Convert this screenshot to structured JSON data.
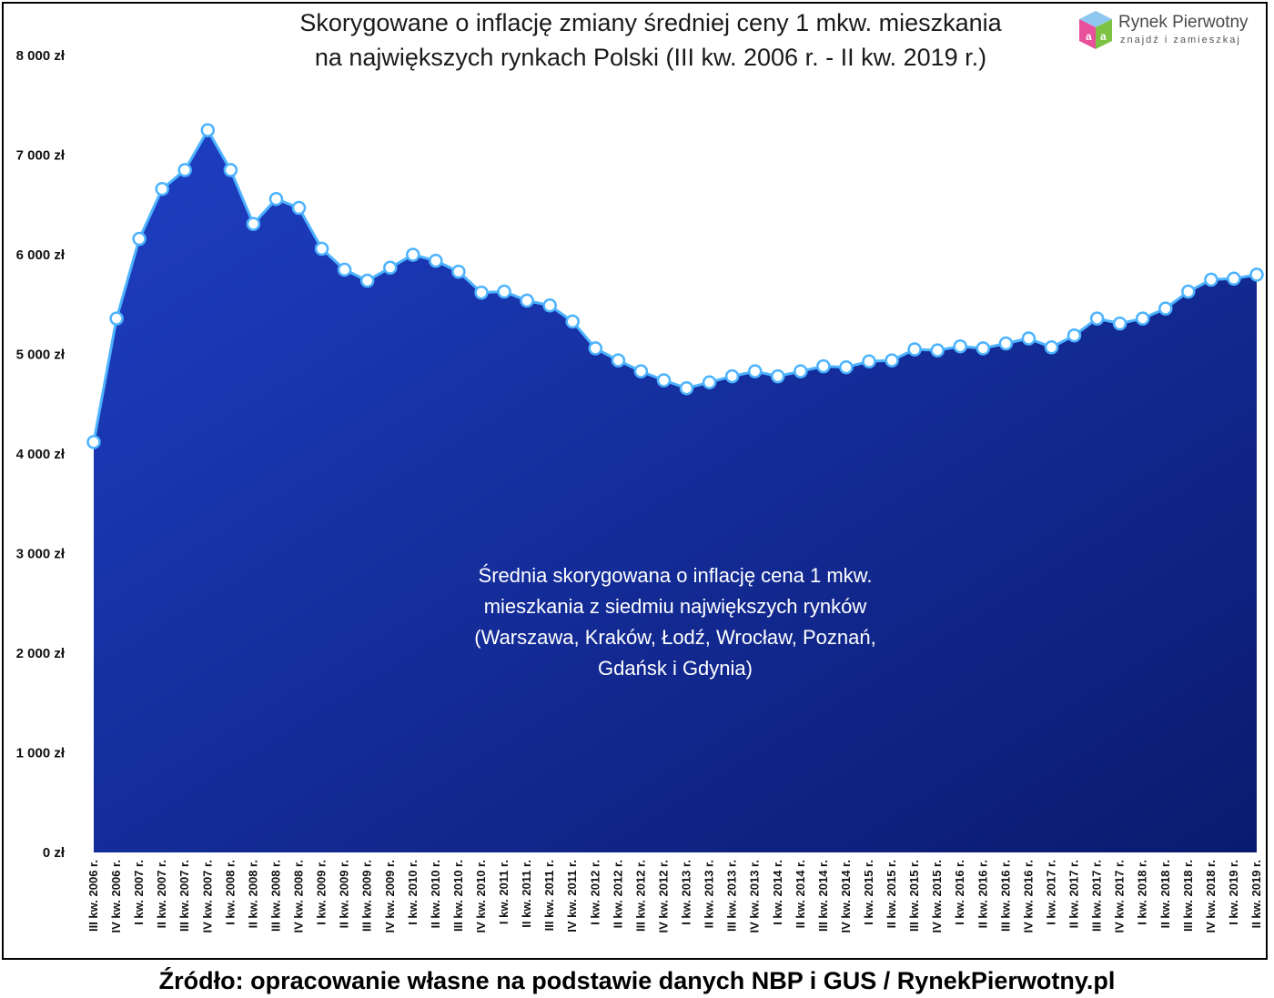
{
  "title": {
    "line1": "Skorygowane o inflację zmiany średniej ceny 1 mkw. mieszkania",
    "line2": "na największych rynkach Polski (III kw. 2006 r. - II kw. 2019 r.)"
  },
  "logo": {
    "name": "Rynek Pierwotny",
    "tagline": "znajdź i zamieszkaj",
    "icon": "cube-logo-icon"
  },
  "source": "Źródło: opracowanie własne na podstawie danych NBP i GUS / RynekPierwotny.pl",
  "colors": {
    "area_top": "#1e3fc4",
    "area_bottom": "#0a1a6e",
    "line": "#4db3ff",
    "marker_fill": "#ffffff"
  },
  "chart_data": {
    "type": "area",
    "ylim": [
      0,
      8000
    ],
    "yticks": [
      "0 zł",
      "1 000 zł",
      "2 000 zł",
      "3 000 zł",
      "4 000 zł",
      "5 000 zł",
      "6 000 zł",
      "7 000 zł",
      "8 000 zł"
    ],
    "ytick_values": [
      0,
      1000,
      2000,
      3000,
      4000,
      5000,
      6000,
      7000,
      8000
    ],
    "grid": false,
    "annotation": [
      "Średnia skorygowana o inflację cena 1 mkw.",
      "mieszkania z siedmiu największych rynków",
      "(Warszawa, Kraków, Łodź, Wrocław, Poznań,",
      "Gdańsk i Gdynia)"
    ],
    "categories": [
      "III kw. 2006 r.",
      "IV kw. 2006 r.",
      "I kw. 2007 r.",
      "II kw. 2007 r.",
      "III kw. 2007 r.",
      "IV kw. 2007 r.",
      "I kw. 2008 r.",
      "II kw. 2008 r.",
      "III kw. 2008 r.",
      "IV kw. 2008 r.",
      "I kw. 2009 r.",
      "II kw. 2009 r.",
      "III kw. 2009 r.",
      "IV kw. 2009 r.",
      "I kw. 2010 r.",
      "II kw. 2010 r.",
      "III kw. 2010 r.",
      "IV kw. 2010 r.",
      "I kw. 2011 r.",
      "II kw. 2011 r.",
      "III kw. 2011 r.",
      "IV kw. 2011 r.",
      "I kw. 2012 r.",
      "II kw. 2012 r.",
      "III kw. 2012 r.",
      "IV kw. 2012 r.",
      "I kw. 2013 r.",
      "II kw. 2013 r.",
      "III kw. 2013 r.",
      "IV kw. 2013 r.",
      "I kw. 2014 r.",
      "II kw. 2014 r.",
      "III kw. 2014 r.",
      "IV kw. 2014 r.",
      "I kw. 2015 r.",
      "II kw. 2015 r.",
      "III kw. 2015 r.",
      "IV kw. 2015 r.",
      "I kw. 2016 r.",
      "II kw. 2016 r.",
      "III kw. 2016 r.",
      "IV kw. 2016 r.",
      "I kw. 2017 r.",
      "II kw. 2017 r.",
      "III kw. 2017 r.",
      "IV kw. 2017 r.",
      "I kw. 2018 r.",
      "II kw. 2018 r.",
      "III kw. 2018 r.",
      "IV kw. 2018 r.",
      "I kw. 2019 r.",
      "II kw. 2019 r."
    ],
    "values": [
      4120,
      5360,
      6160,
      6660,
      6850,
      7250,
      6850,
      6310,
      6560,
      6470,
      6060,
      5850,
      5740,
      5870,
      6000,
      5940,
      5830,
      5620,
      5630,
      5540,
      5490,
      5330,
      5060,
      4940,
      4830,
      4740,
      4660,
      4720,
      4780,
      4830,
      4780,
      4830,
      4880,
      4870,
      4930,
      4940,
      5050,
      5040,
      5080,
      5060,
      5110,
      5160,
      5070,
      5190,
      5360,
      5310,
      5360,
      5460,
      5630,
      5750,
      5760,
      5800
    ]
  }
}
